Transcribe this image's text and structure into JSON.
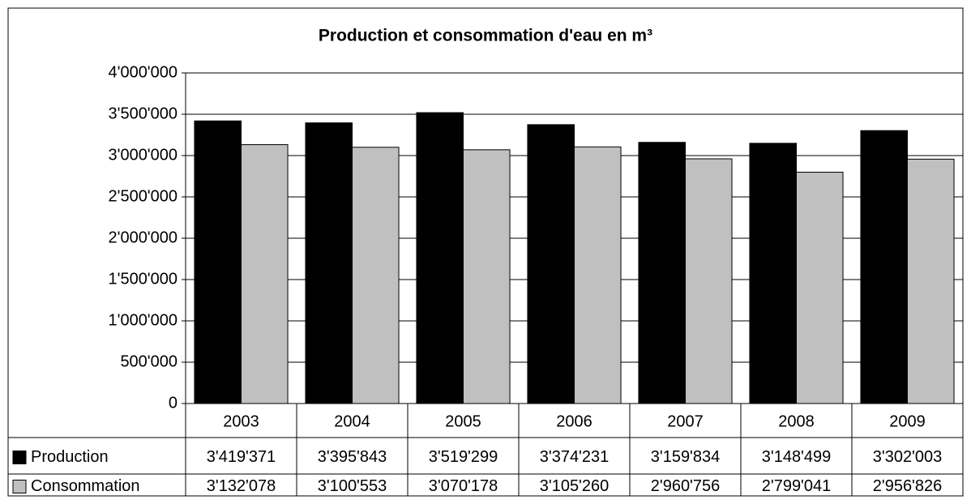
{
  "chart_data": {
    "type": "bar",
    "title": "Production et consommation d'eau en m³",
    "categories": [
      "2003",
      "2004",
      "2005",
      "2006",
      "2007",
      "2008",
      "2009"
    ],
    "series": [
      {
        "name": "Production",
        "color": "#000000",
        "values": [
          3419371,
          3395843,
          3519299,
          3374231,
          3159834,
          3148499,
          3302003
        ],
        "value_labels": [
          "3'419'371",
          "3'395'843",
          "3'519'299",
          "3'374'231",
          "3'159'834",
          "3'148'499",
          "3'302'003"
        ]
      },
      {
        "name": "Consommation",
        "color": "#c0c0c0",
        "values": [
          3132078,
          3100553,
          3070178,
          3105260,
          2960756,
          2799041,
          2956826
        ],
        "value_labels": [
          "3'132'078",
          "3'100'553",
          "3'070'178",
          "3'105'260",
          "2'960'756",
          "2'799'041",
          "2'956'826"
        ]
      }
    ],
    "ylim": [
      0,
      4000000
    ],
    "yticks": [
      0,
      {
        "value": 500000,
        "label": "500'000"
      },
      {
        "value": 1000000,
        "label": "1'000'000"
      },
      {
        "value": 1500000,
        "label": "1'500'000"
      },
      {
        "value": 2000000,
        "label": "2'000'000"
      },
      {
        "value": 2500000,
        "label": "2'500'000"
      },
      {
        "value": 3000000,
        "label": "3'000'000"
      },
      {
        "value": 3500000,
        "label": "3'500'000"
      },
      {
        "value": 4000000,
        "label": "4'000'000"
      }
    ],
    "grid": true
  }
}
